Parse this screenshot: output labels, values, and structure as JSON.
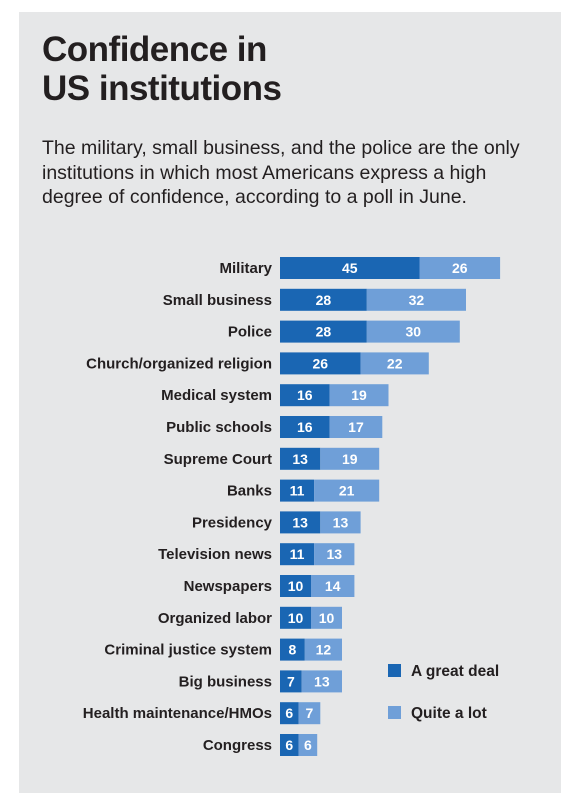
{
  "title": "Confidence in\nUS institutions",
  "subtitle": "The military, small business, and the police are the only institutions in which most Americans express a high degree of confidence, according to a poll in June.",
  "colors": {
    "great_deal": "#1a66b3",
    "quite_a_lot": "#6f9fd8",
    "background": "#e6e7e8",
    "text": "#231f20"
  },
  "chart_data": {
    "type": "bar",
    "orientation": "horizontal",
    "stacked": true,
    "title": "Confidence in US institutions",
    "categories": [
      "Military",
      "Small business",
      "Police",
      "Church/organized religion",
      "Medical system",
      "Public schools",
      "Supreme Court",
      "Banks",
      "Presidency",
      "Television news",
      "Newspapers",
      "Organized labor",
      "Criminal justice system",
      "Big business",
      "Health maintenance/HMOs",
      "Congress"
    ],
    "series": [
      {
        "name": "A great deal",
        "color": "#1a66b3",
        "values": [
          45,
          28,
          28,
          26,
          16,
          16,
          13,
          11,
          13,
          11,
          10,
          10,
          8,
          7,
          6,
          6
        ]
      },
      {
        "name": "Quite a lot",
        "color": "#6f9fd8",
        "values": [
          26,
          32,
          30,
          22,
          19,
          17,
          19,
          21,
          13,
          13,
          14,
          10,
          12,
          13,
          7,
          6
        ]
      }
    ],
    "legend_position": "bottom-right",
    "grid": false
  }
}
